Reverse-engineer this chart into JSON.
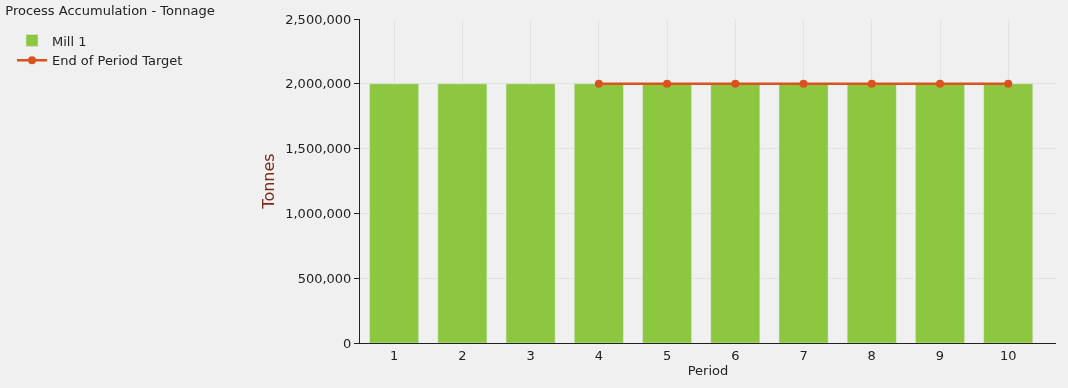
{
  "chart_data": {
    "type": "bar",
    "title": "Process Accumulation - Tonnage",
    "xlabel": "Period",
    "ylabel": "Tonnes",
    "categories": [
      "1",
      "2",
      "3",
      "4",
      "5",
      "6",
      "7",
      "8",
      "9",
      "10"
    ],
    "series": [
      {
        "name": "Mill 1",
        "color": "#8dc63f",
        "values": [
          2000000,
          2000000,
          2000000,
          2000000,
          2000000,
          2000000,
          2000000,
          2000000,
          2000000,
          2000000
        ]
      },
      {
        "name": "End of Period Target",
        "type": "line",
        "color": "#d9531e",
        "marker": "circle",
        "values": [
          null,
          null,
          null,
          2000000,
          2000000,
          2000000,
          2000000,
          2000000,
          2000000,
          2000000
        ]
      }
    ],
    "ylim": [
      0,
      2500000
    ],
    "yticks": [
      {
        "value": 0,
        "label": "0"
      },
      {
        "value": 500000,
        "label": "500,000"
      },
      {
        "value": 1000000,
        "label": "1,000,000"
      },
      {
        "value": 1500000,
        "label": "1,500,000"
      },
      {
        "value": 2000000,
        "label": "2,000,000"
      },
      {
        "value": 2500000,
        "label": "2,500,000"
      }
    ],
    "grid": true,
    "legend": "top left"
  }
}
